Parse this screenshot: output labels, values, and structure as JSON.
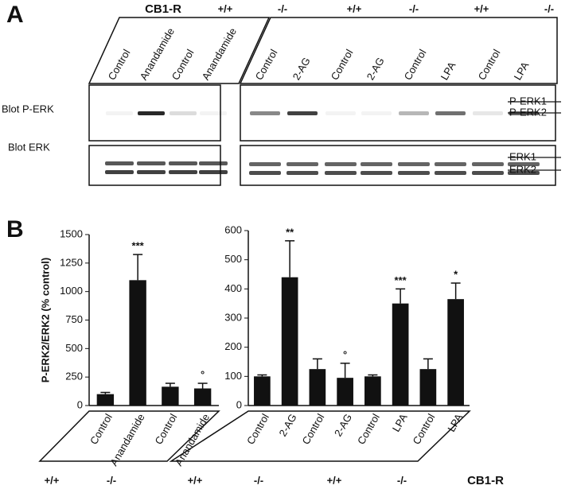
{
  "panel_a": {
    "label": "A",
    "genotype_label": "CB1-R",
    "genotypes": [
      "+/+",
      "-/-",
      "+/+",
      "-/-",
      "+/+",
      "-/-"
    ],
    "lanes_left": [
      "Control",
      "Anandamide",
      "Control",
      "Anandamide"
    ],
    "lanes_right": [
      "Control",
      "2-AG",
      "Control",
      "2-AG",
      "Control",
      "LPA",
      "Control",
      "LPA"
    ],
    "blot_rows": [
      "Blot  P-ERK",
      "Blot  ERK"
    ],
    "bands_top": [
      "P-ERK1",
      "P-ERK2"
    ],
    "bands_bottom": [
      "ERK1",
      "ERK2"
    ]
  },
  "panel_b": {
    "label": "B",
    "genotype_label": "CB1-R"
  },
  "chart_data": [
    {
      "type": "bar",
      "ylabel": "P-ERK2/ERK2 (% control)",
      "categories": [
        "Control",
        "Anandamide",
        "Control",
        "Anandamide"
      ],
      "values": [
        100,
        1100,
        165,
        150
      ],
      "errors": [
        15,
        225,
        30,
        45
      ],
      "value_annotations": [
        null,
        "***",
        null,
        "°"
      ],
      "genotypes": [
        "+/+",
        "-/-"
      ],
      "color": "#111111",
      "ylim": [
        0,
        1500
      ],
      "yticks": [
        0,
        250,
        500,
        750,
        1000,
        1250,
        1500
      ]
    },
    {
      "type": "bar",
      "categories": [
        "Control",
        "2-AG",
        "Control",
        "2-AG",
        "Control",
        "LPA",
        "Control",
        "LPA"
      ],
      "values": [
        100,
        440,
        125,
        95,
        100,
        350,
        125,
        365
      ],
      "errors": [
        5,
        125,
        35,
        50,
        5,
        50,
        35,
        55
      ],
      "value_annotations": [
        null,
        "**",
        null,
        "°",
        null,
        "***",
        null,
        "*"
      ],
      "genotypes": [
        "+/+",
        "-/-",
        "+/+",
        "-/-"
      ],
      "color": "#111111",
      "ylim": [
        0,
        600
      ],
      "yticks": [
        0,
        100,
        200,
        300,
        400,
        500,
        600
      ]
    }
  ]
}
